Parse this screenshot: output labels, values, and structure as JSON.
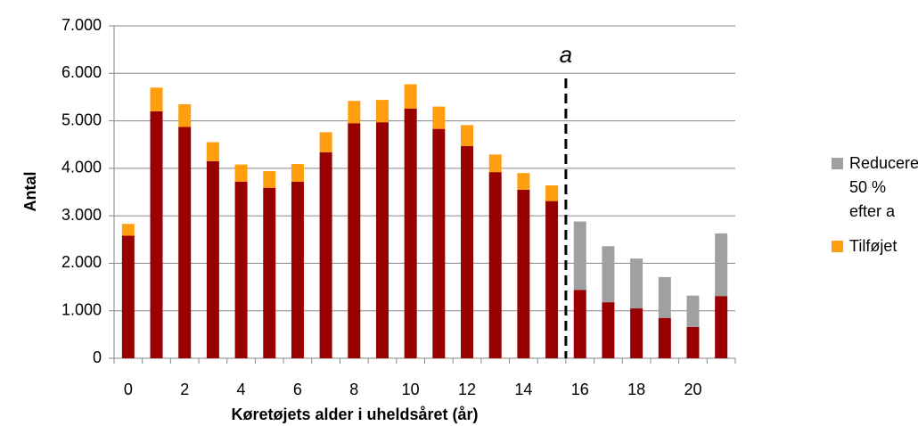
{
  "chart_data": {
    "type": "bar",
    "stacked": true,
    "x_label": "Køretøjets alder i uheldsåret (år)",
    "y_label": "Antal",
    "categories": [
      0,
      null,
      2,
      null,
      4,
      null,
      6,
      null,
      8,
      null,
      10,
      null,
      12,
      null,
      14,
      null,
      16,
      null,
      18,
      null,
      20,
      null
    ],
    "series": [
      {
        "name": null,
        "color": "#990000",
        "values": [
          2580,
          5200,
          4870,
          4150,
          3720,
          3590,
          3720,
          4340,
          4950,
          4970,
          5260,
          4830,
          4470,
          3920,
          3550,
          3310,
          1440,
          1180,
          1050,
          850,
          660,
          1310
        ]
      },
      {
        "name": "Tilføjet",
        "color": "#ff9f10",
        "values": [
          250,
          500,
          480,
          400,
          360,
          350,
          370,
          420,
          470,
          470,
          510,
          470,
          440,
          370,
          350,
          330,
          null,
          null,
          null,
          null,
          null,
          null
        ]
      },
      {
        "name": "Reduceret 50 % efter a",
        "color": "#a0a0a0",
        "values": [
          null,
          null,
          null,
          null,
          null,
          null,
          null,
          null,
          null,
          null,
          null,
          null,
          null,
          null,
          null,
          null,
          1440,
          1180,
          1050,
          860,
          660,
          1320
        ]
      }
    ],
    "annotation": {
      "text": "a",
      "x": 15.5
    },
    "ylim": [
      0,
      7000
    ],
    "yticks": [
      0,
      {
        "value": 1000,
        "label": "1.000"
      },
      {
        "value": 2000,
        "label": "2.000"
      },
      {
        "value": 3000,
        "label": "3.000"
      },
      {
        "value": 4000,
        "label": "4.000"
      },
      {
        "value": 5000,
        "label": "5.000"
      },
      {
        "value": 6000,
        "label": "6.000"
      },
      {
        "value": 7000,
        "label": "7.000"
      }
    ],
    "grid": true,
    "legend": "right"
  }
}
